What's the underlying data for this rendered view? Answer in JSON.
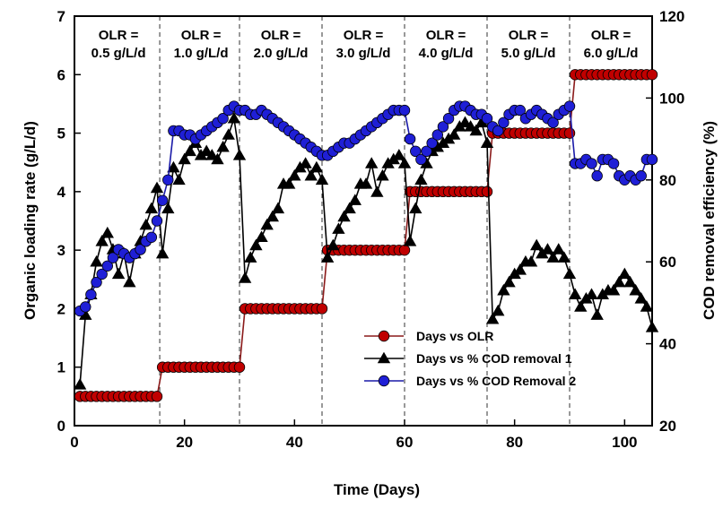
{
  "chart_data": {
    "type": "line",
    "title": "",
    "xlabel": "Time (Days)",
    "ylabel": "Organic loading rate (g/L/d)",
    "ylabel_right": "COD removal efficiency (%)",
    "xlim": [
      0,
      105
    ],
    "ylim": [
      0,
      7
    ],
    "ylim_right": [
      20,
      120
    ],
    "x_ticks": [
      0,
      20,
      40,
      60,
      80,
      100
    ],
    "y_ticks": [
      0,
      1,
      2,
      3,
      4,
      5,
      6,
      7
    ],
    "y_ticks_right": [
      20,
      40,
      60,
      80,
      100,
      120
    ],
    "grid": false,
    "legend_position": "bottom-right",
    "phase_boundaries": [
      15.5,
      30,
      45,
      60,
      75,
      90
    ],
    "phase_labels": [
      {
        "line1": "OLR =",
        "line2": "0.5 g/L/d",
        "x_center": 8
      },
      {
        "line1": "OLR =",
        "line2": "1.0 g/L/d",
        "x_center": 23
      },
      {
        "line1": "OLR =",
        "line2": "2.0 g/L/d",
        "x_center": 37.5
      },
      {
        "line1": "OLR =",
        "line2": "3.0 g/L/d",
        "x_center": 52.5
      },
      {
        "line1": "OLR =",
        "line2": "4.0 g/L/d",
        "x_center": 67.5
      },
      {
        "line1": "OLR =",
        "line2": "5.0 g/L/d",
        "x_center": 82.5
      },
      {
        "line1": "OLR =",
        "line2": "6.0 g/L/d",
        "x_center": 97.5
      }
    ],
    "series": [
      {
        "name": "Days vs OLR",
        "axis": "left",
        "marker": "circle",
        "color": "#c00000",
        "line_color": "#8b1a1a",
        "x": [
          1,
          2,
          3,
          4,
          5,
          6,
          7,
          8,
          9,
          10,
          11,
          12,
          13,
          14,
          15,
          16,
          17,
          18,
          19,
          20,
          21,
          22,
          23,
          24,
          25,
          26,
          27,
          28,
          29,
          30,
          31,
          32,
          33,
          34,
          35,
          36,
          37,
          38,
          39,
          40,
          41,
          42,
          43,
          44,
          45,
          46,
          47,
          48,
          49,
          50,
          51,
          52,
          53,
          54,
          55,
          56,
          57,
          58,
          59,
          60,
          61,
          62,
          63,
          64,
          65,
          66,
          67,
          68,
          69,
          70,
          71,
          72,
          73,
          74,
          75,
          76,
          77,
          78,
          79,
          80,
          81,
          82,
          83,
          84,
          85,
          86,
          87,
          88,
          89,
          90,
          91,
          92,
          93,
          94,
          95,
          96,
          97,
          98,
          99,
          100,
          101,
          102,
          103,
          104,
          105
        ],
        "y": [
          0.5,
          0.5,
          0.5,
          0.5,
          0.5,
          0.5,
          0.5,
          0.5,
          0.5,
          0.5,
          0.5,
          0.5,
          0.5,
          0.5,
          0.5,
          1,
          1,
          1,
          1,
          1,
          1,
          1,
          1,
          1,
          1,
          1,
          1,
          1,
          1,
          1,
          2,
          2,
          2,
          2,
          2,
          2,
          2,
          2,
          2,
          2,
          2,
          2,
          2,
          2,
          2,
          3,
          3,
          3,
          3,
          3,
          3,
          3,
          3,
          3,
          3,
          3,
          3,
          3,
          3,
          3,
          4,
          4,
          4,
          4,
          4,
          4,
          4,
          4,
          4,
          4,
          4,
          4,
          4,
          4,
          4,
          5,
          5,
          5,
          5,
          5,
          5,
          5,
          5,
          5,
          5,
          5,
          5,
          5,
          5,
          5,
          6,
          6,
          6,
          6,
          6,
          6,
          6,
          6,
          6,
          6,
          6,
          6,
          6,
          6,
          6
        ]
      },
      {
        "name": "Days vs % COD removal 1",
        "axis": "right",
        "marker": "triangle",
        "color": "#000000",
        "line_color": "#000000",
        "x": [
          1,
          2,
          3,
          4,
          5,
          6,
          7,
          8,
          9,
          10,
          11,
          12,
          13,
          14,
          15,
          16,
          17,
          18,
          19,
          20,
          21,
          22,
          23,
          24,
          25,
          26,
          27,
          28,
          29,
          30,
          31,
          32,
          33,
          34,
          35,
          36,
          37,
          38,
          39,
          40,
          41,
          42,
          43,
          44,
          45,
          46,
          47,
          48,
          49,
          50,
          51,
          52,
          53,
          54,
          55,
          56,
          57,
          58,
          59,
          60,
          61,
          62,
          63,
          64,
          65,
          66,
          67,
          68,
          69,
          70,
          71,
          72,
          73,
          74,
          75,
          76,
          77,
          78,
          79,
          80,
          81,
          82,
          83,
          84,
          85,
          86,
          87,
          88,
          89,
          90,
          91,
          92,
          93,
          94,
          95,
          96,
          97,
          98,
          99,
          100,
          101,
          102,
          103,
          104,
          105
        ],
        "y": [
          30,
          47,
          52,
          60,
          65,
          67,
          63,
          57,
          62,
          55,
          62,
          65,
          69,
          73,
          78,
          62,
          73,
          83,
          80,
          85,
          87,
          89,
          86,
          87,
          86,
          85,
          88,
          91,
          95,
          86,
          56,
          61,
          64,
          66,
          69,
          71,
          73,
          79,
          79,
          81,
          83,
          84,
          81,
          83,
          80,
          61,
          64,
          68,
          71,
          73,
          75,
          79,
          79,
          84,
          77,
          81,
          84,
          85,
          86,
          84,
          65,
          73,
          80,
          84,
          87,
          88,
          89,
          90,
          91,
          93,
          94,
          93,
          92,
          94,
          89,
          46,
          48,
          53,
          55,
          57,
          58,
          60,
          60,
          64,
          62,
          63,
          61,
          63,
          61,
          57,
          52,
          49,
          51,
          52,
          47,
          52,
          53,
          53,
          55,
          57,
          55,
          53,
          51,
          49,
          44
        ]
      },
      {
        "name": "Days vs % COD Removal 2",
        "axis": "right",
        "marker": "circle",
        "color": "#1f1fd6",
        "line_color": "#1a1aa8",
        "x": [
          1,
          2,
          3,
          4,
          5,
          6,
          7,
          8,
          9,
          10,
          11,
          12,
          13,
          14,
          15,
          16,
          17,
          18,
          19,
          20,
          21,
          22,
          23,
          24,
          25,
          26,
          27,
          28,
          29,
          30,
          31,
          32,
          33,
          34,
          35,
          36,
          37,
          38,
          39,
          40,
          41,
          42,
          43,
          44,
          45,
          46,
          47,
          48,
          49,
          50,
          51,
          52,
          53,
          54,
          55,
          56,
          57,
          58,
          59,
          60,
          61,
          62,
          63,
          64,
          65,
          66,
          67,
          68,
          69,
          70,
          71,
          72,
          73,
          74,
          75,
          76,
          77,
          78,
          79,
          80,
          81,
          82,
          83,
          84,
          85,
          86,
          87,
          88,
          89,
          90,
          91,
          92,
          93,
          94,
          95,
          96,
          97,
          98,
          99,
          100,
          101,
          102,
          103,
          104,
          105
        ],
        "y": [
          48,
          49,
          52,
          55,
          57,
          59,
          61,
          63,
          62,
          61,
          62,
          63,
          65,
          66,
          70,
          75,
          80,
          92,
          92,
          91,
          91,
          90,
          91,
          92,
          93,
          94,
          95,
          97,
          98,
          97,
          97,
          96,
          96,
          97,
          96,
          95,
          94,
          93,
          92,
          91,
          90,
          89,
          88,
          87,
          86,
          86,
          87,
          88,
          89,
          89,
          90,
          91,
          92,
          93,
          94,
          95,
          96,
          97,
          97,
          97,
          90,
          87,
          85,
          87,
          89,
          91,
          93,
          95,
          97,
          98,
          98,
          97,
          96,
          96,
          95,
          93,
          92,
          94,
          96,
          97,
          97,
          95,
          96,
          97,
          96,
          95,
          94,
          96,
          97,
          98,
          84,
          84,
          85,
          84,
          81,
          85,
          85,
          84,
          81,
          80,
          81,
          80,
          81,
          85,
          85
        ]
      }
    ]
  }
}
